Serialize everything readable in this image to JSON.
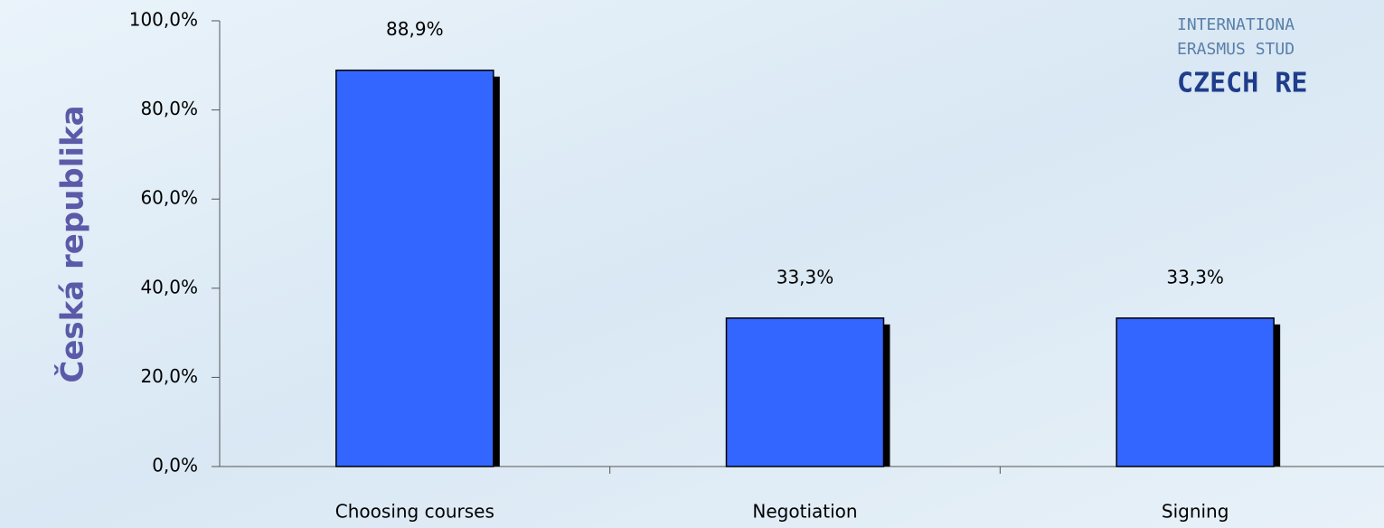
{
  "chart_data": {
    "type": "bar",
    "y_axis_label": "Česká republika",
    "logo": [
      "INTERNATIONA",
      "ERASMUS STUD",
      "CZECH RE"
    ],
    "categories": [
      "Choosing courses",
      "Negotiation",
      "Signing"
    ],
    "values": [
      88.9,
      33.3,
      33.3
    ],
    "value_labels": [
      "88,9%",
      "33,3%",
      "33,3%"
    ],
    "color": "#3366ff",
    "ylim": [
      0,
      100
    ],
    "yticks": [
      {
        "value": 0,
        "label": "0,0%"
      },
      {
        "value": 20,
        "label": "20,0%"
      },
      {
        "value": 40,
        "label": "40,0%"
      },
      {
        "value": 60,
        "label": "60,0%"
      },
      {
        "value": 80,
        "label": "80,0%"
      },
      {
        "value": 100,
        "label": "100,0%"
      }
    ]
  }
}
